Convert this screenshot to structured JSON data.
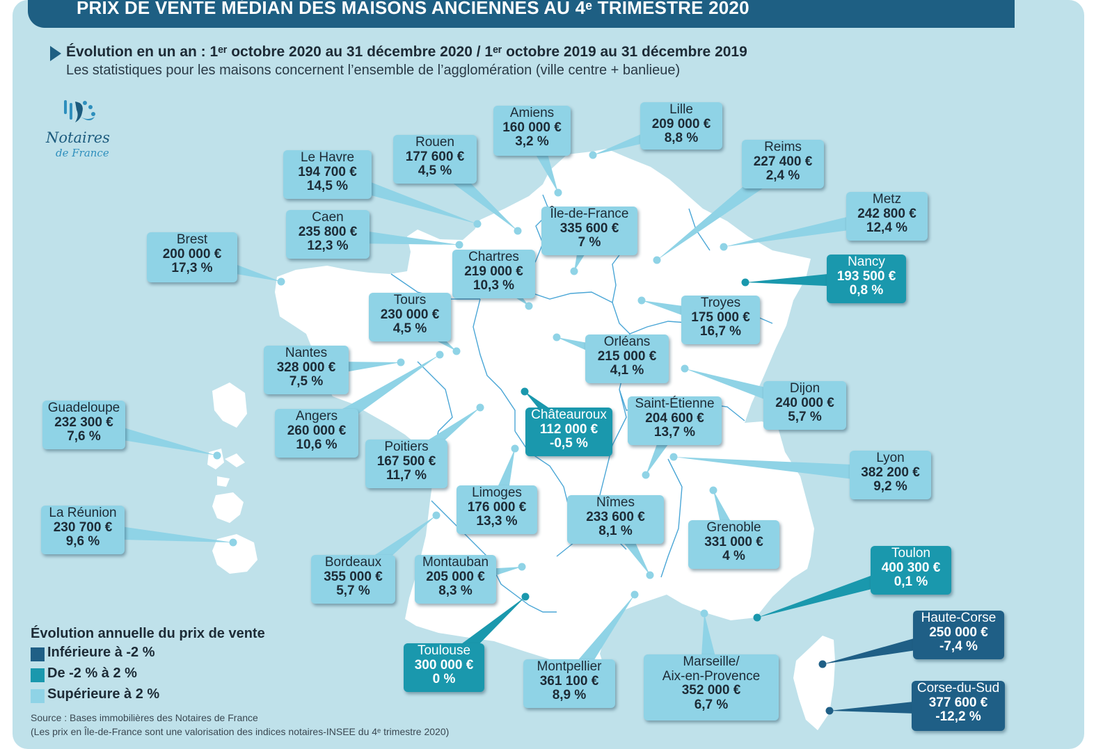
{
  "title": "PRIX DE VENTE MÉDIAN DES MAISONS ANCIENNES AU 4ᵉ TRIMESTRE 2020",
  "subtitle": "Évolution en un an : 1ᵉʳ octobre 2020 au 31 décembre 2020 / 1ᵉʳ octobre 2019 au 31 décembre 2019",
  "subnote": "Les statistiques pour les maisons concernent l’ensemble de l’agglomération (ville centre + banlieue)",
  "logo": {
    "line1": "Notaires",
    "line2": "de France",
    "icon": "notaires-logo-icon"
  },
  "colors": {
    "high": "#8fd3e6",
    "mid": "#1a98ad",
    "low": "#1f5f86",
    "land": "#ffffff",
    "panel": "#bfe1ea",
    "banner": "#1e5f83"
  },
  "legend": {
    "title": "Évolution annuelle du prix de vente",
    "items": [
      {
        "label": "Inférieure à -2 %",
        "class": "low"
      },
      {
        "label": "De -2 % à 2 %",
        "class": "mid"
      },
      {
        "label": "Supérieure à 2 %",
        "class": "high"
      }
    ]
  },
  "source": {
    "line1": "Source : Bases immobilières des Notaires de France",
    "line2": "(Les prix en Île-de-France sont une valorisation des indices notaires-INSEE du 4ᵉ trimestre 2020)"
  },
  "cities": [
    {
      "name": "Amiens",
      "price": "160 000 €",
      "evol": "3,2 %",
      "evol_value": 3.2,
      "class": "high"
    },
    {
      "name": "Lille",
      "price": "209 000 €",
      "evol": "8,8 %",
      "evol_value": 8.8,
      "class": "high"
    },
    {
      "name": "Rouen",
      "price": "177 600 €",
      "evol": "4,5 %",
      "evol_value": 4.5,
      "class": "high"
    },
    {
      "name": "Le Havre",
      "price": "194 700 €",
      "evol": "14,5 %",
      "evol_value": 14.5,
      "class": "high"
    },
    {
      "name": "Reims",
      "price": "227 400 €",
      "evol": "2,4 %",
      "evol_value": 2.4,
      "class": "high"
    },
    {
      "name": "Metz",
      "price": "242 800 €",
      "evol": "12,4 %",
      "evol_value": 12.4,
      "class": "high"
    },
    {
      "name": "Caen",
      "price": "235 800 €",
      "evol": "12,3 %",
      "evol_value": 12.3,
      "class": "high"
    },
    {
      "name": "Île-de-France",
      "price": "335 600 €",
      "evol": "7 %",
      "evol_value": 7,
      "class": "high"
    },
    {
      "name": "Brest",
      "price": "200 000 €",
      "evol": "17,3 %",
      "evol_value": 17.3,
      "class": "high"
    },
    {
      "name": "Chartres",
      "price": "219 000 €",
      "evol": "10,3 %",
      "evol_value": 10.3,
      "class": "high"
    },
    {
      "name": "Nancy",
      "price": "193 500 €",
      "evol": "0,8 %",
      "evol_value": 0.8,
      "class": "mid"
    },
    {
      "name": "Tours",
      "price": "230 000 €",
      "evol": "4,5 %",
      "evol_value": 4.5,
      "class": "high"
    },
    {
      "name": "Troyes",
      "price": "175 000 €",
      "evol": "16,7 %",
      "evol_value": 16.7,
      "class": "high"
    },
    {
      "name": "Orléans",
      "price": "215 000 €",
      "evol": "4,1 %",
      "evol_value": 4.1,
      "class": "high"
    },
    {
      "name": "Nantes",
      "price": "328 000 €",
      "evol": "7,5 %",
      "evol_value": 7.5,
      "class": "high"
    },
    {
      "name": "Dijon",
      "price": "240 000 €",
      "evol": "5,7 %",
      "evol_value": 5.7,
      "class": "high"
    },
    {
      "name": "Guadeloupe",
      "price": "232 300 €",
      "evol": "7,6 %",
      "evol_value": 7.6,
      "class": "high"
    },
    {
      "name": "Angers",
      "price": "260 000 €",
      "evol": "10,6 %",
      "evol_value": 10.6,
      "class": "high"
    },
    {
      "name": "Châteauroux",
      "price": "112 000 €",
      "evol": "-0,5 %",
      "evol_value": -0.5,
      "class": "mid"
    },
    {
      "name": "Saint-Étienne",
      "price": "204 600 €",
      "evol": "13,7 %",
      "evol_value": 13.7,
      "class": "high"
    },
    {
      "name": "Poitiers",
      "price": "167 500 €",
      "evol": "11,7 %",
      "evol_value": 11.7,
      "class": "high"
    },
    {
      "name": "Lyon",
      "price": "382 200 €",
      "evol": "9,2 %",
      "evol_value": 9.2,
      "class": "high"
    },
    {
      "name": "Limoges",
      "price": "176 000 €",
      "evol": "13,3 %",
      "evol_value": 13.3,
      "class": "high"
    },
    {
      "name": "Nîmes",
      "price": "233 600 €",
      "evol": "8,1 %",
      "evol_value": 8.1,
      "class": "high"
    },
    {
      "name": "La Réunion",
      "price": "230 700 €",
      "evol": "9,6 %",
      "evol_value": 9.6,
      "class": "high"
    },
    {
      "name": "Grenoble",
      "price": "331 000 €",
      "evol": "4 %",
      "evol_value": 4,
      "class": "high"
    },
    {
      "name": "Toulon",
      "price": "400 300 €",
      "evol": "0,1 %",
      "evol_value": 0.1,
      "class": "mid"
    },
    {
      "name": "Bordeaux",
      "price": "355 000 €",
      "evol": "5,7 %",
      "evol_value": 5.7,
      "class": "high"
    },
    {
      "name": "Montauban",
      "price": "205 000 €",
      "evol": "8,3 %",
      "evol_value": 8.3,
      "class": "high"
    },
    {
      "name": "Haute-Corse",
      "price": "250 000 €",
      "evol": "-7,4 %",
      "evol_value": -7.4,
      "class": "low"
    },
    {
      "name": "Toulouse",
      "price": "300 000 €",
      "evol": "0 %",
      "evol_value": 0,
      "class": "mid"
    },
    {
      "name": "Montpellier",
      "price": "361 100 €",
      "evol": "8,9 %",
      "evol_value": 8.9,
      "class": "high"
    },
    {
      "name": "Marseille/\nAix-en-Provence",
      "price": "352 000 €",
      "evol": "6,7 %",
      "evol_value": 6.7,
      "class": "high"
    },
    {
      "name": "Corse-du-Sud",
      "price": "377 600 €",
      "evol": "-12,2 %",
      "evol_value": -12.2,
      "class": "low"
    }
  ]
}
